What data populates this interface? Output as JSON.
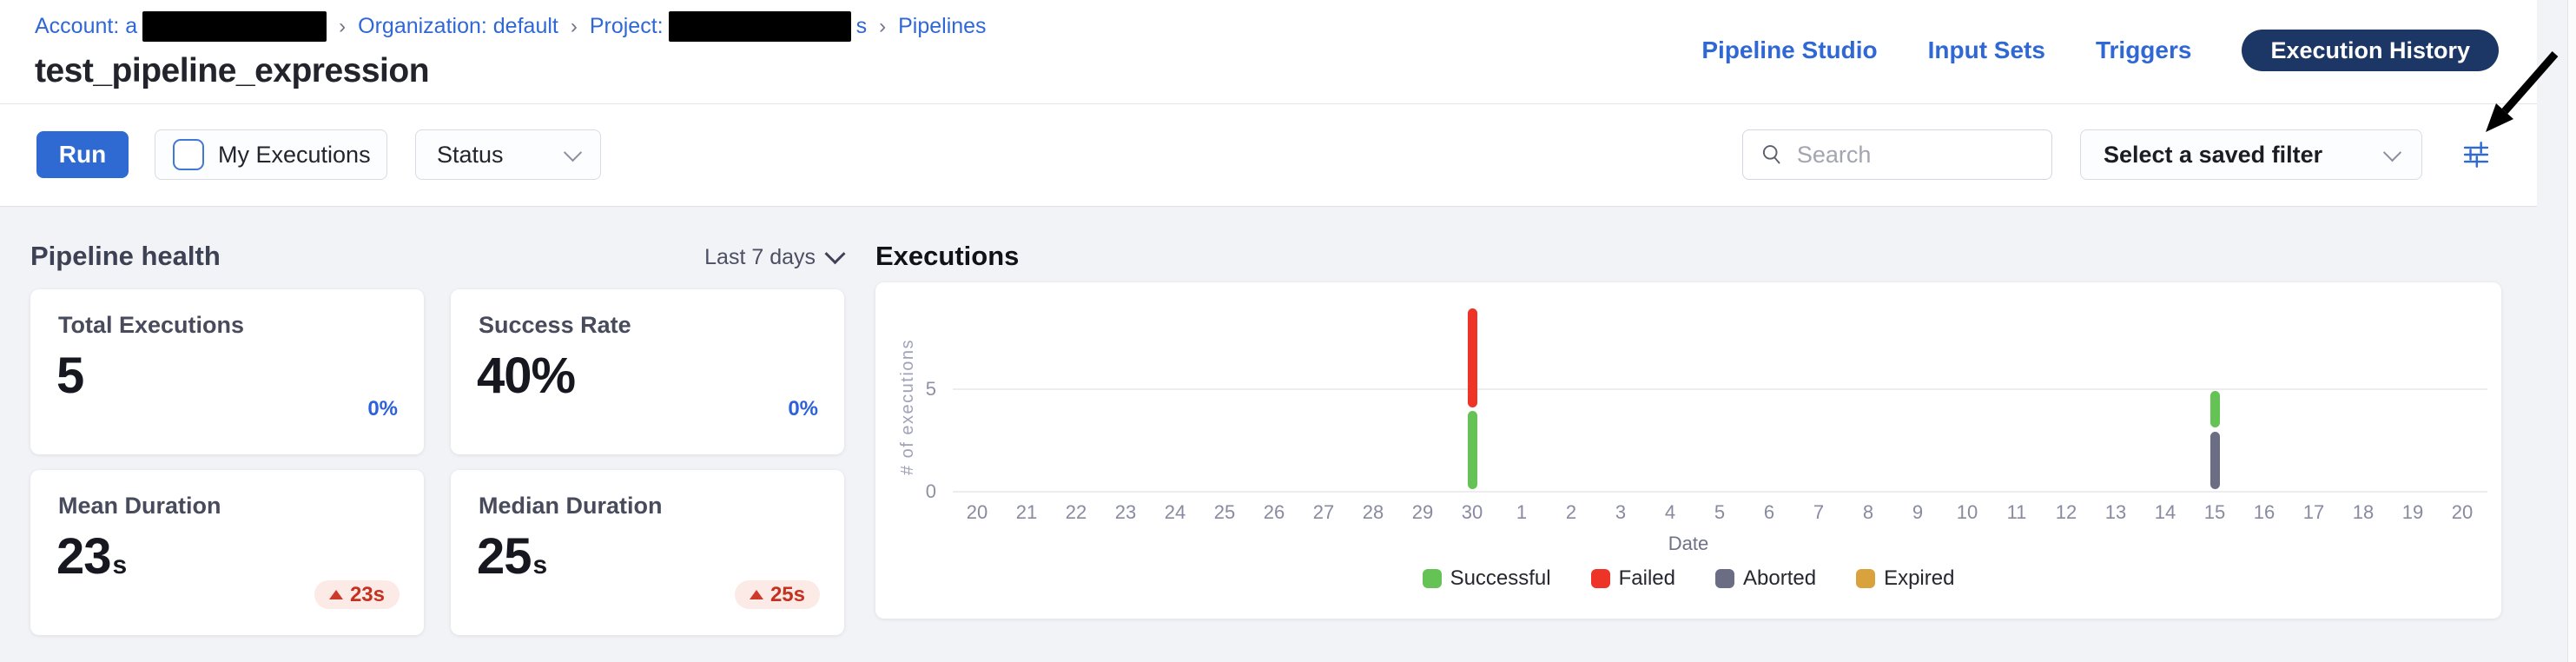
{
  "header": {
    "breadcrumb": {
      "separator": "›",
      "items": [
        {
          "text": "Account: a",
          "redact_width": 212,
          "after": ""
        },
        {
          "text": "Organization: default"
        },
        {
          "text": "Project:",
          "redact_width": 210,
          "after": "s"
        },
        {
          "text": "Pipelines"
        }
      ]
    },
    "title": "test_pipeline_expression",
    "nav": {
      "links": [
        "Pipeline Studio",
        "Input Sets",
        "Triggers"
      ],
      "active_pill": "Execution History"
    }
  },
  "toolbar": {
    "run_label": "Run",
    "my_executions_label": "My Executions",
    "status_label": "Status",
    "search_placeholder": "Search",
    "saved_filter_label": "Select a saved filter",
    "filter_icon": "filter-sliders-icon"
  },
  "health": {
    "heading": "Pipeline health",
    "range_label": "Last 7 days",
    "cards": [
      {
        "label": "Total Executions",
        "value": "5",
        "suffix": "",
        "trend": "0%",
        "trend_type": "neutral"
      },
      {
        "label": "Success Rate",
        "value": "40%",
        "suffix": "",
        "trend": "0%",
        "trend_type": "neutral"
      },
      {
        "label": "Mean Duration",
        "value": "23",
        "suffix": "s",
        "trend": "23s",
        "trend_type": "increase"
      },
      {
        "label": "Median Duration",
        "value": "25",
        "suffix": "s",
        "trend": "25s",
        "trend_type": "increase"
      }
    ]
  },
  "executions": {
    "heading": "Executions",
    "chart_data": {
      "type": "bar",
      "stacked": true,
      "title": "Executions",
      "xlabel": "Date",
      "ylabel": "# of executions",
      "yticks": [
        0,
        5
      ],
      "ylim": [
        0,
        10
      ],
      "grid": "horizontal",
      "legend_position": "bottom",
      "x_labels": [
        "20",
        "21",
        "22",
        "23",
        "24",
        "25",
        "26",
        "27",
        "28",
        "29",
        "30",
        "1",
        "2",
        "3",
        "4",
        "5",
        "6",
        "7",
        "8",
        "9",
        "10",
        "11",
        "12",
        "13",
        "14",
        "15",
        "16",
        "17",
        "18",
        "19",
        "20"
      ],
      "series": [
        {
          "name": "Successful",
          "color": "#65c356"
        },
        {
          "name": "Failed",
          "color": "#ee3426"
        },
        {
          "name": "Aborted",
          "color": "#6b6d85"
        },
        {
          "name": "Expired",
          "color": "#d9a23c"
        }
      ],
      "bars": [
        {
          "x_label": "30",
          "segments": [
            {
              "series": "Successful",
              "value": 4
            },
            {
              "series": "Failed",
              "value": 5
            }
          ]
        },
        {
          "x_label": "15",
          "segments": [
            {
              "series": "Aborted",
              "value": 3
            },
            {
              "series": "Successful",
              "value": 2
            }
          ]
        }
      ],
      "legend": [
        "Successful",
        "Failed",
        "Aborted",
        "Expired"
      ]
    }
  },
  "colors": {
    "primary_blue": "#2e6ad2",
    "link_blue": "#2f68d5",
    "pill_navy": "#1c3665",
    "trend_blue": "#2e62d9",
    "badge_bg": "#fbeae6",
    "badge_text": "#c5311f",
    "content_bg": "#f2f3f7",
    "success_green": "#65c356",
    "failed_red": "#ee3426",
    "aborted_slate": "#6b6d85",
    "expired_amber": "#d9a23c"
  }
}
